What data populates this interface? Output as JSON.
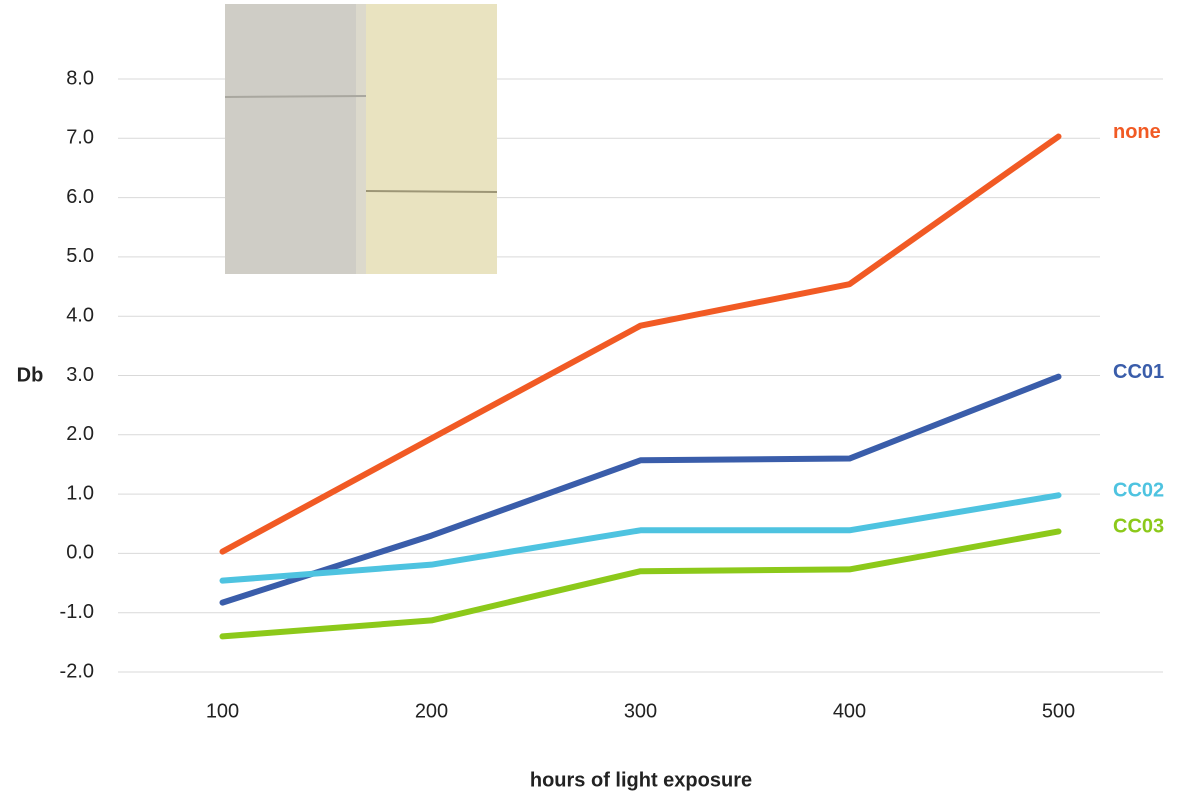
{
  "chart_data": {
    "type": "line",
    "x_label": "hours of light exposure",
    "y_label": "Db",
    "x": [
      100,
      200,
      300,
      400,
      500
    ],
    "xlim": [
      50,
      550
    ],
    "xticks": [
      100,
      200,
      300,
      400,
      500
    ],
    "ylim": [
      -2,
      8
    ],
    "yticks": [
      {
        "value": -2,
        "label": "-2.0"
      },
      {
        "value": -1,
        "label": "-1.0"
      },
      {
        "value": 0,
        "label": "0.0"
      },
      {
        "value": 1,
        "label": "1.0"
      },
      {
        "value": 2,
        "label": "2.0"
      },
      {
        "value": 3,
        "label": "3.0"
      },
      {
        "value": 4,
        "label": "4.0"
      },
      {
        "value": 5,
        "label": "5.0"
      },
      {
        "value": 6,
        "label": "6.0"
      },
      {
        "value": 7,
        "label": "7.0"
      },
      {
        "value": 8,
        "label": "8.0"
      }
    ],
    "grid": true,
    "series": [
      {
        "name": "none",
        "color": "#f15a24",
        "values": [
          0.03,
          1.94,
          3.84,
          4.54,
          7.03
        ]
      },
      {
        "name": "CC01",
        "color": "#3a5daa",
        "values": [
          -0.83,
          0.3,
          1.57,
          1.6,
          2.98
        ]
      },
      {
        "name": "CC02",
        "color": "#4ec3e0",
        "values": [
          -0.46,
          -0.19,
          0.39,
          0.39,
          0.98
        ]
      },
      {
        "name": "CC03",
        "color": "#8cc91a",
        "values": [
          -1.4,
          -1.13,
          -0.3,
          -0.27,
          0.37
        ]
      }
    ]
  }
}
